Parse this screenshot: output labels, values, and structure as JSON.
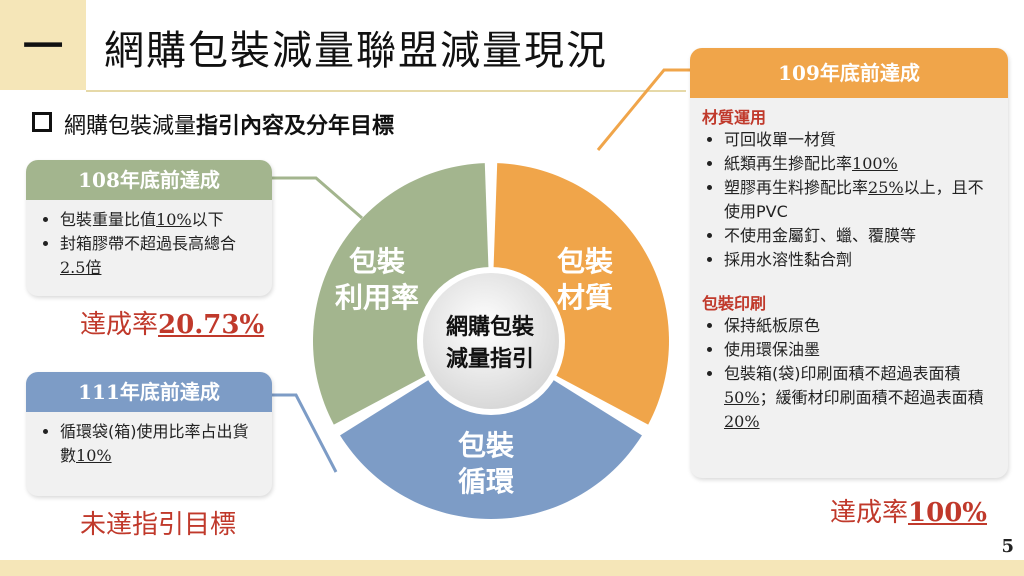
{
  "header": {
    "section_number": "一",
    "title": "網購包裝減量聯盟減量現況"
  },
  "subtitle": {
    "part1": "網購包裝減量",
    "part2": "指引內容及分年目標"
  },
  "pie": {
    "center": [
      "網購包裝",
      "減量指引"
    ],
    "segments": [
      {
        "label": [
          "包裝",
          "材質"
        ],
        "color": "#f0a54a"
      },
      {
        "label": [
          "包裝",
          "循環"
        ],
        "color": "#7d9cc6"
      },
      {
        "label": [
          "包裝",
          "利用率"
        ],
        "color": "#a3b58e"
      }
    ]
  },
  "card108": {
    "header": "108年底前達成",
    "items": [
      {
        "pre": "包裝重量比值",
        "u": "10%",
        "post": "以下"
      },
      {
        "pre": "封箱膠帶不超過長高總合",
        "u": "2.5倍",
        "post": ""
      }
    ],
    "rate_label": "達成率",
    "rate_value": "20.73%"
  },
  "card111": {
    "header": "111年底前達成",
    "items": [
      {
        "pre": "循環袋(箱)使用比率占出貨數",
        "u": "10%",
        "post": ""
      }
    ],
    "status": "未達指引目標"
  },
  "card109": {
    "header": "109年底前達成",
    "section1_title": "材質運用",
    "section1": [
      {
        "pre": "可回收單一材質",
        "u": "",
        "post": ""
      },
      {
        "pre": "紙類再生摻配比率",
        "u": "100%",
        "post": ""
      },
      {
        "pre": "塑膠再生料摻配比率",
        "u": "25%",
        "post": "以上，且不使用PVC"
      },
      {
        "pre": "不使用金屬釘、蠟、覆膜等",
        "u": "",
        "post": ""
      },
      {
        "pre": "採用水溶性黏合劑",
        "u": "",
        "post": ""
      }
    ],
    "section2_title": "包裝印刷",
    "section2": [
      {
        "pre": "保持紙板原色",
        "u": "",
        "post": ""
      },
      {
        "pre": "使用環保油墨",
        "u": "",
        "post": ""
      },
      {
        "pre": "包裝箱(袋)印刷面積不超過表面積",
        "u": "50%",
        "post": "；緩衝材印刷面積不超過表面積"
      },
      {
        "pre": "",
        "u": "20%",
        "post": ""
      }
    ],
    "rate_label": "達成率",
    "rate_value": "100%"
  },
  "colors": {
    "orange": "#f0a54a",
    "blue": "#7d9cc6",
    "green": "#a3b58e",
    "red": "#c0392b"
  },
  "page_number": "5"
}
